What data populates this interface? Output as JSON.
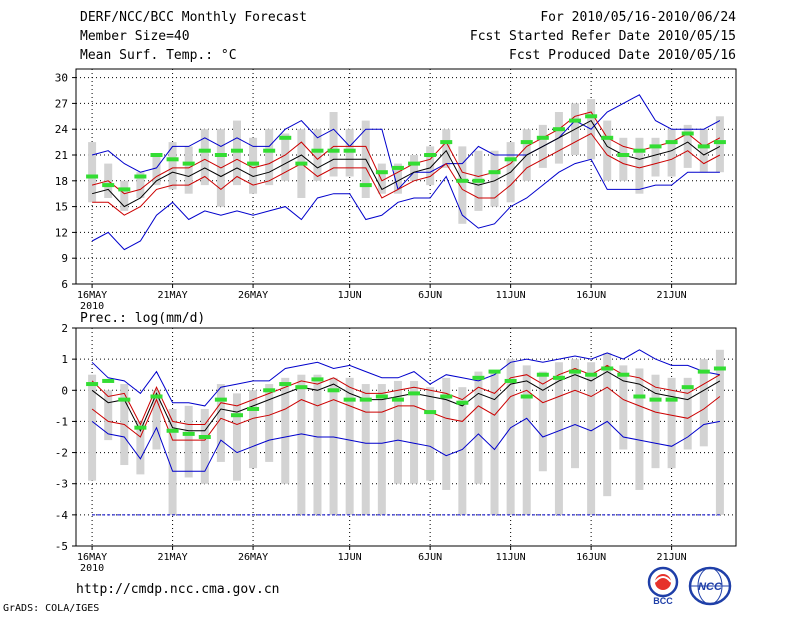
{
  "header": {
    "title": "DERF/NCC/BCC Monthly Forecast",
    "member_size": "Member Size=40",
    "variable1": "Mean Surf. Temp.: °C",
    "forecast_range": "For 2010/05/16-2010/06/24",
    "started_refer": "Fcst Started Refer Date 2010/05/15",
    "produced": "Fcst Produced Date 2010/05/16"
  },
  "footer": {
    "url": "http://cmdp.ncc.cma.gov.cn",
    "grads": "GrADS: COLA/IGES",
    "logo_bcc": "BCC",
    "logo_ncc": "NCC"
  },
  "colors": {
    "max_min": "#0000cc",
    "inner": "#cc0000",
    "mean": "#000000",
    "obs": "#33dd33",
    "box": "#d3d3d3",
    "grid": "#000000"
  },
  "chart_data": [
    {
      "type": "line",
      "title": "Mean Surf. Temp.: °C",
      "x_tick_labels": [
        "16MAY",
        "21MAY",
        "26MAY",
        "1JUN",
        "6JUN",
        "11JUN",
        "16JUN",
        "21JUN"
      ],
      "x_year_label": "2010",
      "x_tick_days": [
        0,
        5,
        10,
        16,
        21,
        26,
        31,
        36
      ],
      "ylim": [
        6,
        31
      ],
      "y_ticks": [
        6,
        9,
        12,
        15,
        18,
        21,
        24,
        27,
        30
      ],
      "days": 40,
      "series": [
        {
          "name": "max",
          "values": [
            21,
            21.5,
            20,
            19,
            19.5,
            22,
            22,
            23,
            22,
            23,
            22,
            22,
            24,
            25,
            23,
            24,
            22,
            24,
            24,
            17,
            19,
            19,
            20,
            20,
            22,
            21,
            21,
            21,
            22,
            23,
            25,
            24,
            26,
            27,
            28,
            25,
            24,
            24,
            24,
            25
          ]
        },
        {
          "name": "upper",
          "values": [
            17.5,
            18,
            16.5,
            17,
            18.5,
            19.5,
            19.5,
            20.5,
            19.5,
            20.5,
            19.5,
            20,
            21,
            22.5,
            20.5,
            22,
            22,
            22,
            18,
            19,
            20,
            20.5,
            22.5,
            19,
            18.5,
            19,
            20,
            22,
            23,
            24,
            25.5,
            26,
            23,
            22,
            21.5,
            22,
            22.5,
            23.5,
            22,
            23
          ]
        },
        {
          "name": "mean",
          "values": [
            16.5,
            17,
            15,
            16,
            18,
            19,
            18.5,
            19.5,
            18.5,
            19.5,
            18.5,
            19,
            20,
            21,
            19.5,
            20.5,
            20.5,
            20.5,
            17,
            18,
            19,
            19.5,
            21.5,
            18,
            17.5,
            18,
            19,
            21,
            22,
            23,
            24,
            25,
            22,
            21,
            20.5,
            21,
            21.5,
            22.5,
            21,
            22
          ]
        },
        {
          "name": "lower",
          "values": [
            15.5,
            15.5,
            14,
            15,
            17,
            17.5,
            17.5,
            18.5,
            17,
            18.5,
            17.5,
            18,
            19,
            20,
            18.5,
            19.5,
            19.5,
            19.5,
            16,
            17,
            18,
            18.5,
            20,
            17,
            16,
            16,
            17.5,
            19.5,
            20.5,
            21.5,
            22.5,
            23.5,
            21,
            20,
            19.5,
            20,
            20.5,
            21.5,
            20,
            21
          ]
        },
        {
          "name": "min",
          "values": [
            11,
            12,
            10,
            11,
            14,
            15.5,
            13.5,
            14.5,
            14,
            14.5,
            14,
            14.5,
            15,
            13.5,
            16,
            16.5,
            16.5,
            13.5,
            14,
            15.5,
            16,
            16,
            18.5,
            14,
            12.5,
            13,
            15,
            16,
            17.5,
            19,
            20,
            20.5,
            17,
            17,
            17,
            17.5,
            17.5,
            19,
            19,
            19
          ]
        },
        {
          "name": "observed",
          "values": [
            18.5,
            17.5,
            17,
            18.5,
            21,
            20.5,
            20,
            21.5,
            21,
            21.5,
            20,
            21.5,
            23,
            20,
            21.5,
            21.5,
            21.5,
            17.5,
            19,
            19.5,
            20,
            21,
            22.5,
            18,
            18,
            19,
            20.5,
            22.5,
            23,
            24,
            25,
            25.5,
            23,
            21,
            21.5,
            22,
            22.5,
            23.5,
            22,
            22.5
          ]
        },
        {
          "name": "box_high",
          "values": [
            22.5,
            20,
            18,
            19,
            21,
            22.5,
            22,
            24,
            24,
            25,
            23,
            24,
            23.5,
            24,
            24,
            26,
            24,
            25,
            20,
            20,
            21,
            22,
            24,
            22,
            21.5,
            21.5,
            22.5,
            24,
            24.5,
            26,
            27,
            27.5,
            25,
            23,
            23,
            23,
            24,
            24.5,
            24,
            25.5
          ]
        },
        {
          "name": "box_low",
          "values": [
            15.5,
            16,
            14.5,
            16,
            17.5,
            17,
            16.5,
            17.5,
            15,
            17.5,
            16.5,
            17.5,
            18,
            16,
            18,
            18.5,
            18.5,
            16,
            16.5,
            16.5,
            18,
            17.5,
            19.5,
            13,
            14.5,
            15,
            15.5,
            18,
            19.5,
            20,
            21,
            20.5,
            18,
            18,
            16.5,
            18.5,
            18.5,
            19.5,
            19,
            19
          ]
        }
      ]
    },
    {
      "type": "line",
      "title": "Prec.: log(mm/d)",
      "x_tick_labels": [
        "16MAY",
        "21MAY",
        "26MAY",
        "1JUN",
        "6JUN",
        "11JUN",
        "16JUN",
        "21JUN"
      ],
      "x_year_label": "2010",
      "x_tick_days": [
        0,
        5,
        10,
        16,
        21,
        26,
        31,
        36
      ],
      "ylim": [
        -5,
        2
      ],
      "y_ticks": [
        -5,
        -4,
        -3,
        -2,
        -1,
        0,
        1,
        2
      ],
      "days": 40,
      "baseline": -4,
      "series": [
        {
          "name": "max",
          "values": [
            0.9,
            0.4,
            0.3,
            -0.1,
            0.6,
            -0.4,
            -0.4,
            -0.5,
            0.1,
            0.2,
            0.3,
            0.3,
            0.7,
            0.8,
            0.9,
            0.7,
            0.8,
            0.6,
            0.4,
            0.4,
            0.6,
            0.2,
            0.5,
            0.4,
            0.3,
            0.5,
            0.9,
            1.0,
            0.9,
            1.0,
            1.1,
            1.0,
            1.2,
            1.0,
            1.3,
            1.0,
            0.8,
            0.8,
            0.6,
            0.5
          ]
        },
        {
          "name": "mean",
          "values": [
            0.0,
            -0.4,
            -0.3,
            -1.3,
            -0.1,
            -1.2,
            -1.3,
            -1.3,
            -0.6,
            -0.7,
            -0.5,
            -0.3,
            -0.1,
            0.1,
            0.0,
            0.2,
            -0.1,
            -0.3,
            -0.3,
            -0.2,
            -0.1,
            -0.2,
            -0.3,
            -0.5,
            -0.1,
            -0.3,
            0.2,
            0.3,
            0.0,
            0.3,
            0.5,
            0.3,
            0.6,
            0.3,
            0.2,
            -0.1,
            -0.2,
            -0.3,
            0.0,
            0.3
          ]
        },
        {
          "name": "upper",
          "values": [
            0.3,
            -0.2,
            -0.1,
            -1.1,
            0.1,
            -1.0,
            -1.1,
            -1.1,
            -0.4,
            -0.5,
            -0.3,
            -0.1,
            0.1,
            0.3,
            0.2,
            0.4,
            0.1,
            -0.1,
            -0.1,
            0.0,
            0.1,
            0.0,
            -0.1,
            -0.3,
            0.1,
            -0.1,
            0.4,
            0.5,
            0.2,
            0.5,
            0.7,
            0.5,
            0.8,
            0.5,
            0.4,
            0.1,
            0.0,
            -0.1,
            0.2,
            0.5
          ]
        },
        {
          "name": "lower",
          "values": [
            -0.6,
            -1.0,
            -1.1,
            -1.5,
            -0.3,
            -1.6,
            -1.6,
            -1.6,
            -0.9,
            -1.1,
            -0.9,
            -0.8,
            -0.6,
            -0.3,
            -0.5,
            -0.3,
            -0.5,
            -0.7,
            -0.7,
            -0.5,
            -0.5,
            -0.7,
            -0.9,
            -1.0,
            -0.5,
            -0.8,
            -0.2,
            0.0,
            -0.4,
            -0.2,
            0.0,
            -0.2,
            0.1,
            -0.3,
            -0.5,
            -0.7,
            -0.8,
            -0.9,
            -0.6,
            -0.2
          ]
        },
        {
          "name": "min",
          "values": [
            -1.0,
            -1.4,
            -1.5,
            -2.2,
            -1.2,
            -2.6,
            -2.6,
            -2.6,
            -1.6,
            -2.0,
            -1.8,
            -1.6,
            -1.5,
            -1.4,
            -1.5,
            -1.5,
            -1.6,
            -1.7,
            -1.7,
            -1.6,
            -1.7,
            -1.8,
            -2.1,
            -1.9,
            -1.4,
            -1.9,
            -1.2,
            -0.9,
            -1.5,
            -1.3,
            -1.1,
            -1.3,
            -1.0,
            -1.5,
            -1.6,
            -1.7,
            -1.8,
            -1.5,
            -1.1,
            -1.0
          ]
        },
        {
          "name": "observed",
          "values": [
            0.2,
            0.3,
            -0.3,
            -1.2,
            -0.2,
            -1.3,
            -1.4,
            -1.5,
            -0.3,
            -0.8,
            -0.6,
            0.0,
            0.2,
            0.1,
            0.35,
            0.0,
            -0.3,
            -0.3,
            -0.2,
            -0.3,
            -0.1,
            -0.7,
            -0.2,
            -0.4,
            0.4,
            0.6,
            0.3,
            -0.2,
            0.5,
            0.4,
            0.6,
            0.5,
            0.7,
            0.5,
            -0.2,
            -0.3,
            -0.3,
            0.1,
            0.6,
            0.7
          ]
        },
        {
          "name": "box_high",
          "values": [
            0.5,
            0.0,
            0.2,
            -1.0,
            0.0,
            -0.6,
            -0.5,
            -0.6,
            0.2,
            -0.1,
            0.0,
            0.2,
            0.4,
            0.5,
            0.5,
            0.4,
            0.4,
            0.2,
            0.2,
            0.3,
            0.3,
            0.1,
            0.4,
            0.1,
            0.6,
            0.6,
            1.0,
            0.8,
            0.6,
            0.9,
            1.0,
            0.9,
            1.2,
            0.8,
            0.7,
            0.5,
            0.4,
            0.4,
            1.0,
            1.3
          ]
        },
        {
          "name": "box_low",
          "values": [
            -2.9,
            -1.6,
            -2.4,
            -2.7,
            -1.9,
            -4.0,
            -2.8,
            -3.0,
            -2.3,
            -2.9,
            -2.5,
            -2.3,
            -3.0,
            -4.0,
            -4.0,
            -4.0,
            -4.0,
            -4.0,
            -4.0,
            -3.0,
            -3.0,
            -2.9,
            -3.2,
            -4.0,
            -3.0,
            -4.0,
            -4.0,
            -4.0,
            -2.6,
            -4.0,
            -2.5,
            -4.0,
            -3.4,
            -1.9,
            -3.2,
            -2.5,
            -2.5,
            -1.9,
            -1.8,
            -4.0
          ]
        }
      ]
    }
  ]
}
